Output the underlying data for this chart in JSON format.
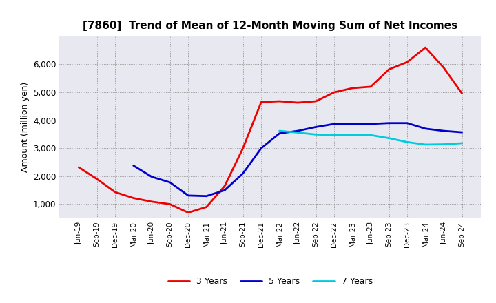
{
  "title": "[7860]  Trend of Mean of 12-Month Moving Sum of Net Incomes",
  "ylabel": "Amount (million yen)",
  "background_color": "#ffffff",
  "plot_bg_color": "#e8e8f0",
  "grid_color": "#999999",
  "x_labels": [
    "Jun-19",
    "Sep-19",
    "Dec-19",
    "Mar-20",
    "Jun-20",
    "Sep-20",
    "Dec-20",
    "Mar-21",
    "Jun-21",
    "Sep-21",
    "Dec-21",
    "Mar-22",
    "Jun-22",
    "Sep-22",
    "Dec-22",
    "Mar-23",
    "Jun-23",
    "Sep-23",
    "Dec-23",
    "Mar-24",
    "Jun-24",
    "Sep-24"
  ],
  "series": {
    "3 Years": {
      "color": "#ee0000",
      "values": [
        2320,
        1900,
        1430,
        1220,
        1090,
        1000,
        700,
        900,
        1650,
        3000,
        4650,
        4680,
        4630,
        4680,
        5000,
        5150,
        5200,
        5820,
        6080,
        6600,
        5880,
        4960
      ]
    },
    "5 Years": {
      "color": "#0000cc",
      "values": [
        null,
        null,
        null,
        2380,
        1980,
        1780,
        1310,
        1290,
        1500,
        2100,
        3000,
        3530,
        3620,
        3760,
        3870,
        3870,
        3870,
        3900,
        3900,
        3700,
        3620,
        3570
      ]
    },
    "7 Years": {
      "color": "#00ccdd",
      "values": [
        null,
        null,
        null,
        null,
        null,
        null,
        null,
        null,
        null,
        null,
        null,
        3620,
        3560,
        3490,
        3470,
        3480,
        3470,
        3360,
        3220,
        3130,
        3140,
        3180
      ]
    },
    "10 Years": {
      "color": "#007700",
      "values": [
        null,
        null,
        null,
        null,
        null,
        null,
        null,
        null,
        null,
        null,
        null,
        null,
        null,
        null,
        null,
        null,
        null,
        null,
        null,
        null,
        null,
        null
      ]
    }
  },
  "ylim": [
    500,
    7000
  ],
  "yticks": [
    1000,
    2000,
    3000,
    4000,
    5000,
    6000
  ],
  "linewidth": 2.0
}
